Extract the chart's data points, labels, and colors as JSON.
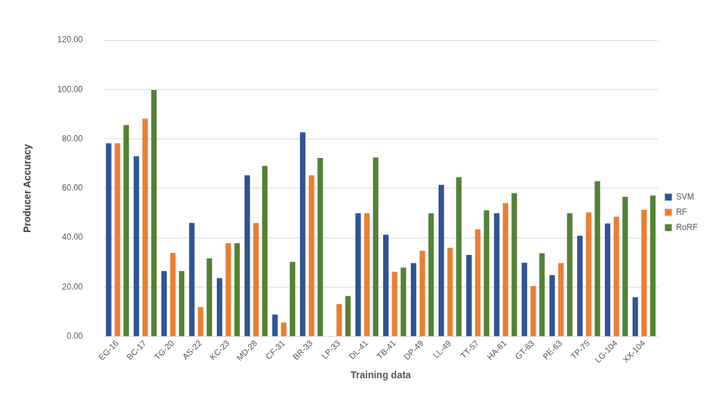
{
  "chart_data": {
    "type": "bar",
    "xlabel": "Training data",
    "ylabel": "Producer Accuracy",
    "categories": [
      "EG-16",
      "BC-17",
      "TG-20",
      "AS-22",
      "KC-23",
      "MD-28",
      "CF-31",
      "BR-33",
      "LP-33",
      "DL-41",
      "TB-41",
      "DP-49",
      "LL-49",
      "TT-57",
      "HA-61",
      "GT-63",
      "PE-63",
      "TP-75",
      "LG-104",
      "XX-104"
    ],
    "series": [
      {
        "name": "SVM",
        "color": "#2f5597",
        "values": [
          78.3,
          73.0,
          26.5,
          46.0,
          23.6,
          65.3,
          8.9,
          82.7,
          0,
          49.9,
          41.2,
          29.7,
          61.4,
          33.0,
          49.9,
          29.9,
          24.9,
          40.8,
          45.8,
          15.9
        ]
      },
      {
        "name": "RF",
        "color": "#ed7d31",
        "values": [
          78.3,
          88.2,
          33.9,
          11.9,
          37.8,
          46.0,
          5.7,
          65.3,
          13.1,
          49.9,
          26.2,
          34.7,
          35.9,
          43.4,
          54.0,
          20.5,
          29.7,
          50.3,
          48.5,
          51.3
        ]
      },
      {
        "name": "RoRF",
        "color": "#548235",
        "values": [
          85.6,
          99.8,
          26.5,
          31.6,
          37.8,
          69.1,
          30.2,
          72.3,
          16.4,
          72.5,
          27.9,
          49.9,
          64.5,
          51.1,
          58.1,
          33.7,
          49.9,
          62.9,
          56.6,
          57.1
        ]
      }
    ],
    "ylim": [
      0,
      120
    ],
    "yticks": [
      {
        "value": 0,
        "label": "0.00"
      },
      {
        "value": 20,
        "label": "20.00"
      },
      {
        "value": 40,
        "label": "40.00"
      },
      {
        "value": 60,
        "label": "60.00"
      },
      {
        "value": 80,
        "label": "80.00"
      },
      {
        "value": 100,
        "label": "100.00"
      },
      {
        "value": 120,
        "label": "120.00"
      }
    ],
    "grid": "y",
    "legend": "right"
  }
}
